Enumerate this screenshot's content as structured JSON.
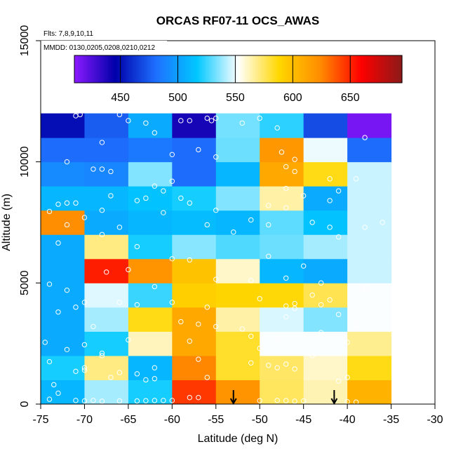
{
  "chart_data": {
    "type": "heatmap",
    "title": "ORCAS RF07-11 OCS_AWAS",
    "notes": [
      "Flts: 7,8,9,10,11",
      "MMDD: 0130,0205,0208,0210,0212"
    ],
    "xlabel": "Latitude (deg N)",
    "ylabel": "Altitude (m)",
    "xlim": [
      -75,
      -30
    ],
    "ylim": [
      0,
      15000
    ],
    "xticks": [
      -75,
      -70,
      -65,
      -60,
      -55,
      -50,
      -45,
      -40,
      -35,
      -30
    ],
    "yticks": [
      0,
      5000,
      10000,
      15000
    ],
    "colorbar": {
      "range": [
        410,
        695
      ],
      "ticks": [
        450,
        500,
        550,
        600,
        650
      ],
      "colors": [
        "#8c1aff",
        "#0000aa",
        "#1e70ff",
        "#00c8ff",
        "#ffffff",
        "#ffd700",
        "#ff8c00",
        "#ff0000",
        "#8b1a1a"
      ]
    },
    "lat_bins": [
      -75,
      -70,
      -65,
      -60,
      -55,
      -50,
      -45,
      -40,
      -35
    ],
    "alt_bins": [
      0,
      1000,
      2000,
      3000,
      4000,
      5000,
      6000,
      7000,
      8000,
      9000,
      10000,
      11000,
      12000
    ],
    "cells": [
      [
        510,
        540,
        520,
        645,
        620,
        575,
        563,
        605
      ],
      [
        520,
        570,
        510,
        625,
        582,
        574,
        560,
        585
      ],
      [
        505,
        520,
        562,
        610,
        582,
        552,
        552,
        568
      ],
      [
        505,
        540,
        585,
        610,
        565,
        547,
        535,
        552
      ],
      [
        505,
        548,
        525,
        592,
        589,
        587,
        577,
        552
      ],
      [
        505,
        652,
        620,
        598,
        560,
        510,
        505,
        545
      ],
      [
        505,
        570,
        520,
        536,
        528,
        532,
        540,
        545
      ],
      [
        623,
        505,
        510,
        512,
        510,
        530,
        515,
        545
      ],
      [
        510,
        510,
        515,
        520,
        535,
        565,
        505,
        545
      ],
      [
        492,
        490,
        535,
        480,
        510,
        610,
        585,
        545
      ],
      [
        480,
        480,
        485,
        480,
        532,
        618,
        550,
        480
      ],
      [
        450,
        475,
        505,
        440,
        533,
        523,
        470,
        415
      ]
    ],
    "observations": [
      [
        -74,
        200
      ],
      [
        -73,
        450
      ],
      [
        -71,
        150
      ],
      [
        -70,
        130
      ],
      [
        -69,
        150
      ],
      [
        -68,
        120
      ],
      [
        -66,
        130
      ],
      [
        -64,
        130
      ],
      [
        -63,
        140
      ],
      [
        -62,
        150
      ],
      [
        -61,
        150
      ],
      [
        -60,
        150
      ],
      [
        -58,
        270
      ],
      [
        -57,
        270
      ],
      [
        -50,
        140
      ],
      [
        -48,
        150
      ],
      [
        -47,
        140
      ],
      [
        -46,
        120
      ],
      [
        -45,
        130
      ],
      [
        -40,
        100
      ],
      [
        -39,
        80
      ],
      [
        -73.5,
        800
      ],
      [
        -71,
        1350
      ],
      [
        -70,
        1400
      ],
      [
        -67,
        1100
      ],
      [
        -66,
        1300
      ],
      [
        -64,
        1250
      ],
      [
        -63,
        1000
      ],
      [
        -62,
        1050
      ],
      [
        -57,
        1850
      ],
      [
        -51,
        1700
      ],
      [
        -49,
        1600
      ],
      [
        -48,
        1500
      ],
      [
        -47,
        1650
      ],
      [
        -46,
        1450
      ],
      [
        -41,
        950
      ],
      [
        -40,
        1100
      ],
      [
        -74,
        1750
      ],
      [
        -70,
        1500
      ],
      [
        -68,
        2100
      ],
      [
        -62,
        1500
      ],
      [
        -50,
        2300
      ],
      [
        -44,
        2000
      ],
      [
        -56,
        1100
      ],
      [
        -74.5,
        2550
      ],
      [
        -72,
        2250
      ],
      [
        -70,
        2450
      ],
      [
        -68,
        2000
      ],
      [
        -65,
        2650
      ],
      [
        -58,
        2600
      ],
      [
        -51,
        2800
      ],
      [
        -48,
        2750
      ],
      [
        -43,
        2950
      ],
      [
        -40,
        2550
      ],
      [
        -73,
        3800
      ],
      [
        -71,
        4000
      ],
      [
        -69,
        3200
      ],
      [
        -64,
        4100
      ],
      [
        -59,
        3400
      ],
      [
        -57,
        3300
      ],
      [
        -55,
        3200
      ],
      [
        -52,
        3100
      ],
      [
        -47,
        3600
      ],
      [
        -46,
        3950
      ],
      [
        -43,
        4100
      ],
      [
        -41,
        3700
      ],
      [
        -39,
        3300
      ],
      [
        -70,
        4200
      ],
      [
        -60,
        4200
      ],
      [
        -56,
        4000
      ],
      [
        -50,
        4350
      ],
      [
        -47,
        4050
      ],
      [
        -46,
        4150
      ],
      [
        -44,
        4500
      ],
      [
        -42,
        4300
      ],
      [
        -74,
        4950
      ],
      [
        -72,
        4700
      ],
      [
        -66,
        4200
      ],
      [
        -62,
        4850
      ],
      [
        -55,
        5150
      ],
      [
        -51,
        5100
      ],
      [
        -47,
        5200
      ],
      [
        -43,
        5000
      ],
      [
        -38,
        4800
      ],
      [
        -67.5,
        5450
      ],
      [
        -65,
        5550
      ],
      [
        -73,
        6650
      ],
      [
        -64,
        6500
      ],
      [
        -60,
        6000
      ],
      [
        -58,
        5950
      ],
      [
        -49,
        6100
      ],
      [
        -45,
        5700
      ],
      [
        -41,
        6900
      ],
      [
        -72,
        7400
      ],
      [
        -68,
        7000
      ],
      [
        -66,
        7300
      ],
      [
        -56,
        7400
      ],
      [
        -53,
        7100
      ],
      [
        -51,
        7600
      ],
      [
        -49,
        7400
      ],
      [
        -44,
        7500
      ],
      [
        -42,
        7300
      ],
      [
        -38,
        7300
      ],
      [
        -74,
        7950
      ],
      [
        -72,
        8300
      ],
      [
        -70,
        7700
      ],
      [
        -68,
        8000
      ],
      [
        -64,
        8400
      ],
      [
        -61,
        7900
      ],
      [
        -58,
        8300
      ],
      [
        -49,
        8200
      ],
      [
        -47,
        8100
      ],
      [
        -45,
        8600
      ],
      [
        -42,
        8400
      ],
      [
        -36,
        7500
      ],
      [
        -73,
        8250
      ],
      [
        -71,
        8300
      ],
      [
        -67,
        8600
      ],
      [
        -63,
        8500
      ],
      [
        -61,
        8800
      ],
      [
        -59,
        8500
      ],
      [
        -55,
        8000
      ],
      [
        -47,
        8900
      ],
      [
        -41,
        8800
      ],
      [
        -39,
        9300
      ],
      [
        -47,
        9800
      ],
      [
        -46,
        9600
      ],
      [
        -42,
        9300
      ],
      [
        -72,
        10000
      ],
      [
        -69,
        9700
      ],
      [
        -68,
        9700
      ],
      [
        -67,
        9600
      ],
      [
        -62,
        9000
      ],
      [
        -60,
        9200
      ],
      [
        -57,
        10500
      ],
      [
        -55,
        10200
      ],
      [
        -47.5,
        10400
      ],
      [
        -46,
        10100
      ],
      [
        -68,
        10800
      ],
      [
        -60,
        10300
      ],
      [
        -71,
        11900
      ],
      [
        -70.5,
        11950
      ],
      [
        -66,
        11950
      ],
      [
        -65,
        11700
      ],
      [
        -63,
        11600
      ],
      [
        -62,
        11200
      ],
      [
        -59,
        11700
      ],
      [
        -58,
        11700
      ],
      [
        -56,
        11800
      ],
      [
        -55,
        11800
      ],
      [
        -55.5,
        11700
      ],
      [
        -52,
        11600
      ],
      [
        -50,
        11800
      ],
      [
        -48,
        11400
      ],
      [
        -38,
        11000
      ]
    ],
    "arrows": [
      -53,
      -41.5
    ]
  }
}
